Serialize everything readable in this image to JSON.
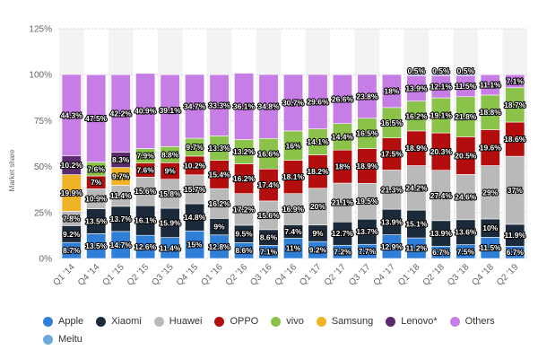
{
  "chart_data": {
    "type": "bar",
    "stacked": true,
    "ylabel": "Market share",
    "xlabel": "",
    "ylim": [
      0,
      125
    ],
    "yticks": [
      0,
      25,
      50,
      75,
      100,
      125
    ],
    "ytick_labels": [
      "0%",
      "25%",
      "50%",
      "75%",
      "100%",
      "125%"
    ],
    "categories": [
      "Q1 '14",
      "Q4 '14",
      "Q1 '15",
      "Q2 '15",
      "Q3 '15",
      "Q4 '15",
      "Q1 '16",
      "Q2 '16",
      "Q3 '16",
      "Q4 '16",
      "Q1 '17",
      "Q2 '17",
      "Q3 '17",
      "Q4 '17",
      "Q1 '18",
      "Q2 '18",
      "Q3 '18",
      "Q4 '18",
      "Q2 '19"
    ],
    "series": [
      {
        "name": "Apple",
        "color": "#2f7ed8",
        "values": [
          8.7,
          13.5,
          14.7,
          12.6,
          11.4,
          15,
          12.8,
          8.6,
          7.1,
          11,
          9.2,
          7.2,
          7.7,
          12.9,
          11.2,
          6.7,
          7.5,
          11.5,
          6.7
        ],
        "labels": [
          "8.7%",
          "13.5%",
          "14.7%",
          "12.6%",
          "11.4%",
          "15%",
          "12.8%",
          "8.6%",
          "7.1%",
          "11%",
          "9.2%",
          "7.2%",
          "7.7%",
          "12.9%",
          "11.2%",
          "6.7%",
          "7.5%",
          "11.5%",
          "6.7%"
        ]
      },
      {
        "name": "Xiaomi",
        "color": "#1b2a3a",
        "values": [
          9.2,
          13.5,
          13.7,
          16.1,
          15.9,
          14.8,
          9,
          9.5,
          8.6,
          7.4,
          9,
          12.7,
          13.7,
          13.9,
          15.1,
          13.9,
          13.6,
          10,
          11.9
        ],
        "labels": [
          "9.2%",
          "13.5%",
          "13.7%",
          "16.1%",
          "15.9%",
          "14.8%",
          "9%",
          "9.5%",
          "8.6%",
          "7.4%",
          "9%",
          "12.7%",
          "13.7%",
          "13.9%",
          "15.1%",
          "13.9%",
          "13.6%",
          "10%",
          "11.9%"
        ]
      },
      {
        "name": "Huawei",
        "color": "#b9b9b9",
        "values": [
          7.8,
          10.9,
          11.4,
          15.6,
          15.8,
          15.7,
          16.2,
          17.2,
          15.6,
          16.9,
          20,
          21.1,
          19.5,
          21.3,
          24.2,
          27.4,
          24.6,
          29,
          37
        ],
        "labels": [
          "7.8%",
          "10.9%",
          "11.4%",
          "15.6%",
          "15.8%",
          "15.7%",
          "16.2%",
          "17.2%",
          "15.6%",
          "16.9%",
          "20%",
          "21.1%",
          "19.5%",
          "21.3%",
          "24.2%",
          "27.4%",
          "24.6%",
          "29%",
          "37%"
        ]
      },
      {
        "name": "OPPO",
        "color": "#b30d0d",
        "values": [
          0,
          7,
          0,
          7.6,
          9,
          10.2,
          15.4,
          16.2,
          17.4,
          18.1,
          18.2,
          18,
          18.9,
          17.5,
          18.9,
          20.3,
          20.5,
          19.6,
          18.6
        ],
        "labels": [
          "",
          "7%",
          "",
          "7.6%",
          "9%",
          "10.2%",
          "15.4%",
          "16.2%",
          "17.4%",
          "18.1%",
          "18.2%",
          "18%",
          "18.9%",
          "17.5%",
          "18.9%",
          "20.3%",
          "20.5%",
          "19.6%",
          "18.6%"
        ]
      },
      {
        "name": "vivo",
        "color": "#8bc34a",
        "values": [
          0,
          7.6,
          0,
          7.9,
          8.8,
          9.7,
          13.3,
          13.2,
          16.6,
          16,
          14.1,
          14.4,
          16.5,
          16.5,
          16.2,
          19.1,
          21.8,
          18.8,
          18.7
        ],
        "labels": [
          "",
          "7.6%",
          "",
          "7.9%",
          "8.8%",
          "9.7%",
          "13.3%",
          "13.2%",
          "16.6%",
          "16%",
          "14.1%",
          "14.4%",
          "16.5%",
          "16.5%",
          "16.2%",
          "19.1%",
          "21.8%",
          "18.8%",
          "18.7%"
        ]
      },
      {
        "name": "Samsung",
        "color": "#f0b323",
        "values": [
          19.9,
          0,
          9.7,
          0,
          0,
          0,
          0,
          0,
          0,
          0,
          0,
          0,
          0,
          0,
          0,
          0,
          0,
          0,
          0
        ],
        "labels": [
          "19.9%",
          "",
          "9.7%",
          "",
          "",
          "",
          "",
          "",
          "",
          "",
          "",
          "",
          "",
          "",
          "",
          "",
          "",
          "",
          ""
        ]
      },
      {
        "name": "Lenovo*",
        "color": "#5b2a6e",
        "values": [
          10.2,
          0,
          8.3,
          0,
          0,
          0,
          0,
          0,
          0,
          0,
          0,
          0,
          0,
          0,
          0,
          0,
          0,
          0,
          0
        ],
        "labels": [
          "10.2%",
          "",
          "8.3%",
          "",
          "",
          "",
          "",
          "",
          "",
          "",
          "",
          "",
          "",
          "",
          "",
          "",
          "",
          "",
          ""
        ]
      },
      {
        "name": "Others",
        "color": "#c77de6",
        "values": [
          44.3,
          47.5,
          42.2,
          40.9,
          39.1,
          34.7,
          33.3,
          36.1,
          34.8,
          30.7,
          29.6,
          26.6,
          23.8,
          18,
          13.9,
          12.1,
          11.5,
          11.1,
          7.1
        ],
        "labels": [
          "44.3%",
          "47.5%",
          "42.2%",
          "40.9%",
          "39.1%",
          "34.7%",
          "33.3%",
          "36.1%",
          "34.8%",
          "30.7%",
          "29.6%",
          "26.6%",
          "23.8%",
          "18%",
          "13.9%",
          "12.1%",
          "11.5%",
          "11.1%",
          "7.1%"
        ]
      },
      {
        "name": "Meitu",
        "color": "#6fa8dc",
        "values": [
          0,
          0,
          0,
          0,
          0,
          0,
          0,
          0,
          0,
          0,
          0,
          0,
          0,
          0,
          0.5,
          0.5,
          0.5,
          0,
          0
        ],
        "labels": [
          "",
          "",
          "",
          "",
          "",
          "",
          "",
          "",
          "",
          "",
          "",
          "",
          "",
          "",
          "0.5%",
          "0.5%",
          "0.5%",
          "",
          ""
        ]
      }
    ],
    "legend_position": "bottom"
  },
  "legend": {
    "row1": [
      {
        "name": "Apple",
        "color": "#2f7ed8"
      },
      {
        "name": "Xiaomi",
        "color": "#1b2a3a"
      },
      {
        "name": "Huawei",
        "color": "#b9b9b9"
      },
      {
        "name": "OPPO",
        "color": "#b30d0d"
      },
      {
        "name": "vivo",
        "color": "#8bc34a"
      },
      {
        "name": "Samsung",
        "color": "#f0b323"
      },
      {
        "name": "Lenovo*",
        "color": "#5b2a6e"
      },
      {
        "name": "Others",
        "color": "#c77de6"
      }
    ],
    "row2": [
      {
        "name": "Meitu",
        "color": "#6fa8dc"
      }
    ]
  }
}
